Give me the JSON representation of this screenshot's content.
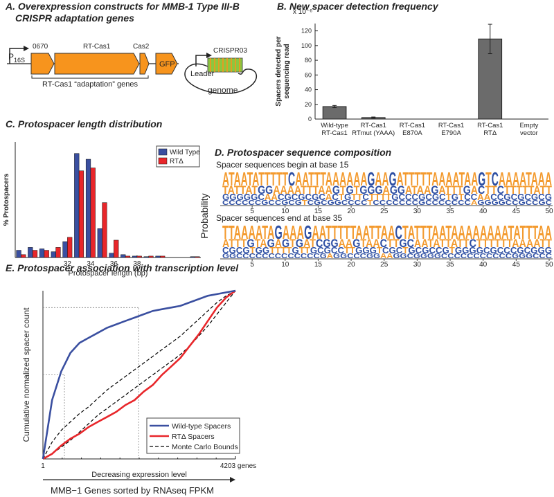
{
  "panels": {
    "a": {
      "title": [
        "A. Overexpression constructs for MMB-1 Type III-B",
        "CRISPR adaptation genes"
      ],
      "promoter": "P",
      "promoter_sub": "16S",
      "genes": [
        "0670",
        "RT-Cas1",
        "Cas2",
        "GFP"
      ],
      "bracket_label": "RT-Cas1 “adaptation” genes",
      "leader": "Leader",
      "array": "CRISPR03",
      "genome": "genome"
    },
    "d": {
      "title": "D. Protospacer sequence composition",
      "y_label": "Probability",
      "xlim": [
        1,
        50
      ],
      "xticks": [
        5,
        10,
        15,
        20,
        25,
        30,
        35,
        40,
        45,
        50
      ],
      "letter_colors": {
        "A": "#f39a2e",
        "T": "#f39a2e",
        "G": "#2e4fa3",
        "C": "#2e4fa3"
      },
      "logos": [
        {
          "subtitle": "Spacer sequences begin at base 15",
          "rows": [
            "ATAATATTTTTCAATTTAAAAAAGAAGATTTTTAAAATAAGTCAAAATAAA",
            "TATTATGGAAAATTTAAGTGTGGGAGGATAAGATTTGACTTCTTTTTATT",
            "GGGGGCAACGCGCGCACTGTTCTTTTGCCCGCGCTGTCCAACCGCGCGCG",
            "CCCCCCGCCGCGTCGCGGCCCCTCCCCCCCGCCCCCCCAGGGGCCGCCGC"
          ]
        },
        {
          "subtitle": "Spacer sequences end at base 35",
          "rows": [
            "TTAAAATAGAAAGAATTTTTAATTAACTATTTAATAAAAAAAATATTTAA",
            "ATTTGTAGAGTGATCGGAAGTAACTTGCAATATTATTCTTTTTTAAAATT",
            "CGCGTGGTTTTGTTGCGCCTTGGGTCGCTGCGCCGTGGGGCGCCCGCGGG",
            "GGCCCCCCCCCCCCCGAGGCCCGGAAGGCGGGGCCCCCCCCCCCGGGCCC"
          ]
        }
      ]
    }
  },
  "chart_data": [
    {
      "type": "bar",
      "title": "B. New spacer detection frequency",
      "y_label": [
        "Spacers detected per",
        "sequencing read"
      ],
      "y_multiplier": "x 10⁻⁶",
      "categories": [
        [
          "Wild-type",
          "RT-Cas1"
        ],
        [
          "RT-Cas1",
          "RTmut (YAAA)"
        ],
        [
          "RT-Cas1",
          "E870A"
        ],
        [
          "RT-Cas1",
          "E790A"
        ],
        [
          "RT-Cas1",
          "RTΔ"
        ],
        [
          "Empty",
          "vector"
        ]
      ],
      "values": [
        17,
        2,
        0,
        0,
        109,
        0
      ],
      "errors": [
        1.5,
        0.8,
        0,
        0,
        20,
        0
      ],
      "color": "#6b6b6b",
      "ylim": [
        0,
        130
      ],
      "yticks": [
        0,
        20,
        40,
        60,
        80,
        100,
        120
      ]
    },
    {
      "type": "grouped_bar",
      "title": "C. Protospacer length distribution",
      "y_label": "% Protospacers",
      "x_label": "Protospacer length (bp)",
      "categories": [
        null,
        null,
        null,
        null,
        "32",
        null,
        "34",
        null,
        "36",
        null,
        "38",
        null,
        null,
        null,
        null,
        null
      ],
      "series": [
        {
          "name": "Wild Type",
          "color": "#3a4fa0",
          "values": [
            2.5,
            3.5,
            3,
            2,
            5.5,
            36,
            34,
            10,
            1.5,
            1,
            0.5,
            0.3,
            0.5,
            0,
            0,
            0.3
          ]
        },
        {
          "name": "RTΔ",
          "color": "#e8262a",
          "values": [
            1,
            2.5,
            2.5,
            3.5,
            7,
            30,
            31,
            19,
            6,
            0.5,
            0.5,
            0.5,
            0.5,
            0,
            0,
            0.3
          ]
        }
      ],
      "ylim": [
        0,
        40
      ],
      "legend": "upper right"
    },
    {
      "type": "line",
      "title": "E. Protospacer association with transcription level",
      "y_label": "Cumulative normalized spacer count",
      "x_label": "MMB−1 Genes sorted by RNAseq FPKM",
      "arrow_label": "Decreasing expression level",
      "x": [
        1,
        200,
        400,
        600,
        800,
        1000,
        1200,
        1400,
        1600,
        1800,
        2000,
        2200,
        2400,
        2600,
        2800,
        3000,
        3200,
        3400,
        3600,
        3800,
        4000,
        4203
      ],
      "series": [
        {
          "name": "Wild-type Spacers",
          "color": "#3a4fa0",
          "style": "solid",
          "values": [
            0,
            0.35,
            0.52,
            0.63,
            0.69,
            0.72,
            0.75,
            0.78,
            0.8,
            0.82,
            0.84,
            0.86,
            0.88,
            0.89,
            0.9,
            0.91,
            0.93,
            0.95,
            0.97,
            0.98,
            0.99,
            1
          ]
        },
        {
          "name": "RTΔ Spacers",
          "color": "#e8262a",
          "style": "solid",
          "values": [
            0,
            0.03,
            0.08,
            0.12,
            0.15,
            0.19,
            0.22,
            0.25,
            0.28,
            0.32,
            0.35,
            0.4,
            0.44,
            0.5,
            0.55,
            0.6,
            0.67,
            0.74,
            0.82,
            0.9,
            0.96,
            1
          ]
        },
        {
          "name": "Monte Carlo Bounds",
          "color": "#000000",
          "style": "dashed",
          "values": [
            0,
            0.1,
            0.17,
            0.22,
            0.27,
            0.31,
            0.36,
            0.41,
            0.45,
            0.49,
            0.53,
            0.57,
            0.61,
            0.65,
            0.69,
            0.73,
            0.78,
            0.83,
            0.88,
            0.93,
            0.97,
            1
          ],
          "lower_values": [
            0,
            0.03,
            0.07,
            0.11,
            0.16,
            0.21,
            0.26,
            0.3,
            0.34,
            0.38,
            0.42,
            0.46,
            0.5,
            0.54,
            0.58,
            0.62,
            0.67,
            0.73,
            0.79,
            0.86,
            0.93,
            1
          ]
        }
      ],
      "reference_lines": [
        {
          "x": 470,
          "y": 0.5
        },
        {
          "x": 2090,
          "y": 0.9
        }
      ],
      "xlim": [
        1,
        4203
      ],
      "xticks": [
        1,
        {
          "value": 4203,
          "label": "4203 genes"
        }
      ],
      "ylim": [
        0,
        1
      ],
      "legend": "lower right"
    }
  ]
}
